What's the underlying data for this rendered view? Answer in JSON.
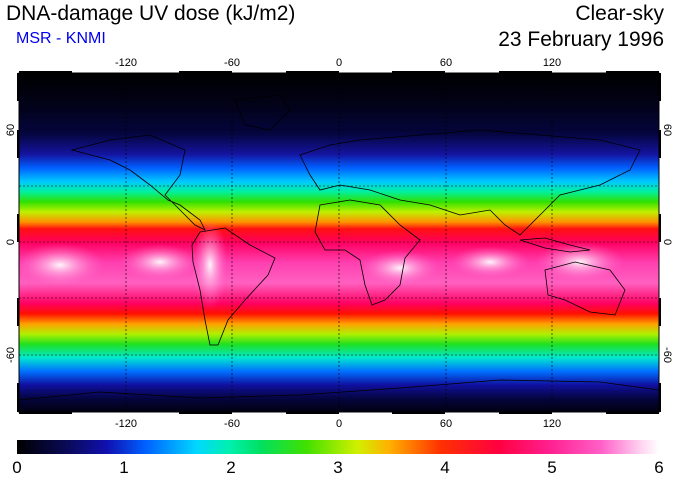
{
  "header": {
    "title": "DNA-damage UV dose (kJ/m2)",
    "source": "MSR - KNMI",
    "condition": "Clear-sky",
    "date": "23 February 1996"
  },
  "map": {
    "lon_labels_top": [
      "-120",
      "-60",
      "0",
      "60",
      "120"
    ],
    "lon_labels_bottom": [
      "-120",
      "-60",
      "0",
      "60",
      "120"
    ],
    "lat_labels": [
      "60",
      "0",
      "-60"
    ],
    "lon_range": [
      -180,
      180
    ],
    "lat_range": [
      -90,
      90
    ]
  },
  "colorbar": {
    "labels": [
      "0",
      "1",
      "2",
      "3",
      "4",
      "5",
      "6"
    ],
    "min": 0,
    "max": 6,
    "colors": [
      "#000000",
      "#1010b0",
      "#00d8ff",
      "#00e060",
      "#ffb000",
      "#ff0040",
      "#ffffff"
    ]
  }
}
